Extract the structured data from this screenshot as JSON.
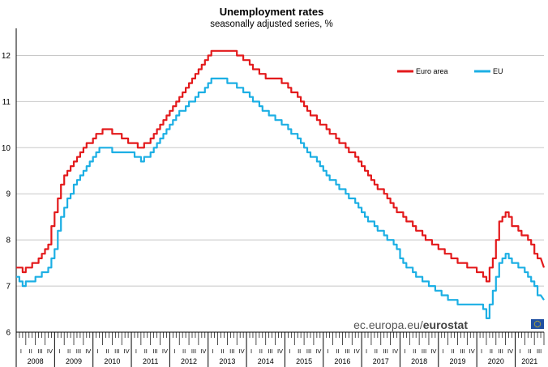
{
  "chart_data": {
    "type": "line",
    "title": "Unemployment rates",
    "subtitle": "seasonally adjusted series, %",
    "ylim": [
      6,
      12.5
    ],
    "yticks": [
      "6",
      "7",
      "8",
      "9",
      "10",
      "11",
      "12"
    ],
    "grid": "horizontal",
    "legend_position": "top-right",
    "x_start": "2008-01",
    "x_end": "2021-09",
    "years": [
      "2008",
      "2009",
      "2010",
      "2011",
      "2012",
      "2013",
      "2014",
      "2015",
      "2016",
      "2017",
      "2018",
      "2019",
      "2020",
      "2021"
    ],
    "quarter_labels": [
      "I",
      "II",
      "III",
      "IV"
    ],
    "series": [
      {
        "name": "Euro area",
        "color": "#e31a1c",
        "points": [
          [
            "2008-01",
            7.4
          ],
          [
            "2008-03",
            7.3
          ],
          [
            "2008-05",
            7.4
          ],
          [
            "2008-08",
            7.6
          ],
          [
            "2008-11",
            7.9
          ],
          [
            "2009-01",
            8.6
          ],
          [
            "2009-03",
            9.2
          ],
          [
            "2009-05",
            9.5
          ],
          [
            "2009-08",
            9.8
          ],
          [
            "2009-11",
            10.1
          ],
          [
            "2010-01",
            10.2
          ],
          [
            "2010-03",
            10.3
          ],
          [
            "2010-05",
            10.4
          ],
          [
            "2010-08",
            10.3
          ],
          [
            "2010-11",
            10.2
          ],
          [
            "2011-01",
            10.1
          ],
          [
            "2011-04",
            10.0
          ],
          [
            "2011-07",
            10.2
          ],
          [
            "2011-10",
            10.5
          ],
          [
            "2012-01",
            10.8
          ],
          [
            "2012-03",
            11.0
          ],
          [
            "2012-06",
            11.3
          ],
          [
            "2012-09",
            11.6
          ],
          [
            "2012-12",
            11.9
          ],
          [
            "2013-02",
            12.1
          ],
          [
            "2013-05",
            12.1
          ],
          [
            "2013-08",
            12.1
          ],
          [
            "2013-11",
            12.0
          ],
          [
            "2014-02",
            11.8
          ],
          [
            "2014-05",
            11.6
          ],
          [
            "2014-08",
            11.5
          ],
          [
            "2014-11",
            11.5
          ],
          [
            "2015-02",
            11.3
          ],
          [
            "2015-05",
            11.1
          ],
          [
            "2015-08",
            10.8
          ],
          [
            "2015-11",
            10.6
          ],
          [
            "2016-02",
            10.4
          ],
          [
            "2016-05",
            10.2
          ],
          [
            "2016-08",
            10.0
          ],
          [
            "2016-11",
            9.8
          ],
          [
            "2017-02",
            9.5
          ],
          [
            "2017-05",
            9.2
          ],
          [
            "2017-08",
            9.0
          ],
          [
            "2017-11",
            8.7
          ],
          [
            "2018-02",
            8.5
          ],
          [
            "2018-05",
            8.3
          ],
          [
            "2018-08",
            8.1
          ],
          [
            "2018-11",
            7.9
          ],
          [
            "2019-02",
            7.8
          ],
          [
            "2019-05",
            7.6
          ],
          [
            "2019-08",
            7.5
          ],
          [
            "2019-11",
            7.4
          ],
          [
            "2020-02",
            7.3
          ],
          [
            "2020-04",
            7.1
          ],
          [
            "2020-06",
            7.6
          ],
          [
            "2020-08",
            8.4
          ],
          [
            "2020-10",
            8.6
          ],
          [
            "2020-12",
            8.3
          ],
          [
            "2021-02",
            8.2
          ],
          [
            "2021-04",
            8.1
          ],
          [
            "2021-06",
            7.9
          ],
          [
            "2021-09",
            7.4
          ]
        ]
      },
      {
        "name": "EU",
        "color": "#1cafe4",
        "points": [
          [
            "2008-01",
            7.2
          ],
          [
            "2008-03",
            7.0
          ],
          [
            "2008-05",
            7.1
          ],
          [
            "2008-08",
            7.2
          ],
          [
            "2008-11",
            7.4
          ],
          [
            "2009-01",
            7.8
          ],
          [
            "2009-03",
            8.5
          ],
          [
            "2009-05",
            8.9
          ],
          [
            "2009-08",
            9.3
          ],
          [
            "2009-11",
            9.6
          ],
          [
            "2010-01",
            9.8
          ],
          [
            "2010-03",
            10.0
          ],
          [
            "2010-05",
            10.0
          ],
          [
            "2010-08",
            9.9
          ],
          [
            "2010-11",
            9.9
          ],
          [
            "2011-01",
            9.9
          ],
          [
            "2011-04",
            9.7
          ],
          [
            "2011-07",
            9.9
          ],
          [
            "2011-10",
            10.2
          ],
          [
            "2012-01",
            10.5
          ],
          [
            "2012-03",
            10.7
          ],
          [
            "2012-06",
            10.9
          ],
          [
            "2012-09",
            11.1
          ],
          [
            "2012-12",
            11.3
          ],
          [
            "2013-02",
            11.5
          ],
          [
            "2013-05",
            11.5
          ],
          [
            "2013-08",
            11.4
          ],
          [
            "2013-11",
            11.3
          ],
          [
            "2014-02",
            11.1
          ],
          [
            "2014-05",
            10.9
          ],
          [
            "2014-08",
            10.7
          ],
          [
            "2014-11",
            10.6
          ],
          [
            "2015-02",
            10.4
          ],
          [
            "2015-05",
            10.2
          ],
          [
            "2015-08",
            9.9
          ],
          [
            "2015-11",
            9.7
          ],
          [
            "2016-02",
            9.4
          ],
          [
            "2016-05",
            9.2
          ],
          [
            "2016-08",
            9.0
          ],
          [
            "2016-11",
            8.8
          ],
          [
            "2017-02",
            8.5
          ],
          [
            "2017-05",
            8.3
          ],
          [
            "2017-08",
            8.1
          ],
          [
            "2017-11",
            7.9
          ],
          [
            "2018-02",
            7.5
          ],
          [
            "2018-05",
            7.3
          ],
          [
            "2018-08",
            7.1
          ],
          [
            "2018-11",
            7.0
          ],
          [
            "2019-02",
            6.8
          ],
          [
            "2019-05",
            6.7
          ],
          [
            "2019-08",
            6.6
          ],
          [
            "2019-11",
            6.6
          ],
          [
            "2020-02",
            6.6
          ],
          [
            "2020-04",
            6.3
          ],
          [
            "2020-06",
            6.9
          ],
          [
            "2020-08",
            7.5
          ],
          [
            "2020-10",
            7.7
          ],
          [
            "2020-12",
            7.5
          ],
          [
            "2021-02",
            7.4
          ],
          [
            "2021-04",
            7.3
          ],
          [
            "2021-06",
            7.1
          ],
          [
            "2021-09",
            6.7
          ]
        ]
      }
    ]
  },
  "source": {
    "text": "ec.europa.eu/",
    "brand": "eurostat",
    "flag_color": "#1f4fa2",
    "star_color": "#ffd400"
  }
}
